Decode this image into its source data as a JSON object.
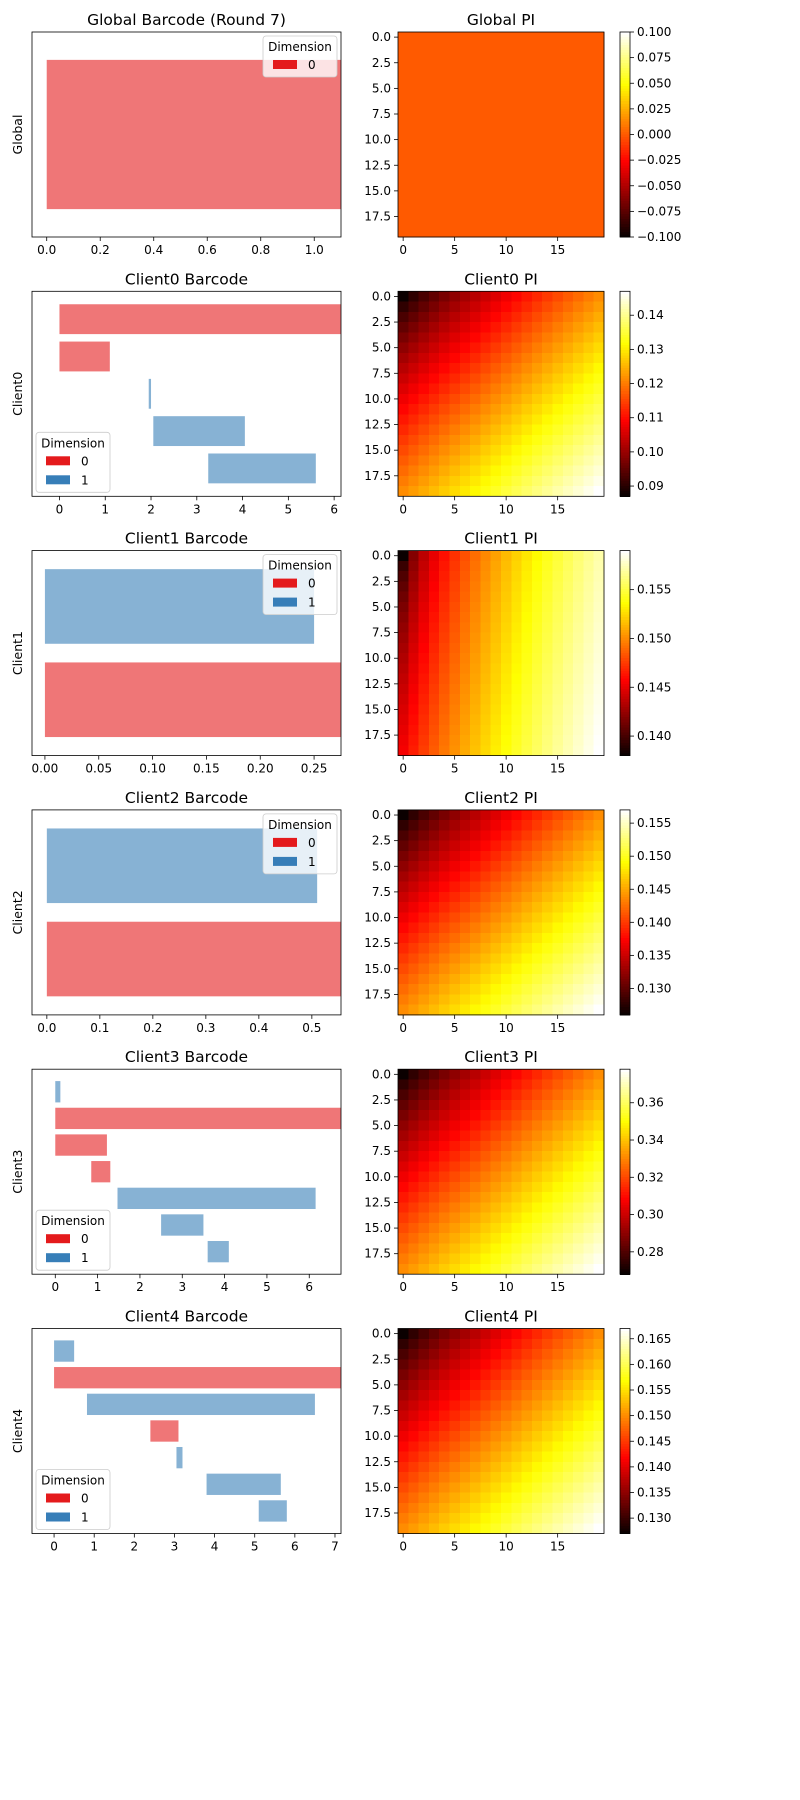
{
  "colors": {
    "dim0": "#e41a1c",
    "dim1": "#377eb8",
    "bar_alpha": 0.6
  },
  "chart_data": [
    {
      "type": "bar",
      "title": "Global Barcode (Round 7)",
      "ylabel": "Global",
      "orientation": "horizontal",
      "xlim": [
        -0.055,
        1.1
      ],
      "xticks": [
        "0.0",
        "0.2",
        "0.4",
        "0.6",
        "0.8",
        "1.0"
      ],
      "xtick_values": [
        0,
        0.2,
        0.4,
        0.6,
        0.8,
        1.0
      ],
      "legend": {
        "title": "Dimension",
        "entries": [
          "0"
        ],
        "position": "top-right"
      },
      "bars": [
        {
          "birth": 0,
          "death": 1.1,
          "dim": 0
        }
      ]
    },
    {
      "type": "heatmap",
      "title": "Global PI",
      "colormap": "hot",
      "grid_size": [
        20,
        20
      ],
      "vmin": -0.1,
      "vmax": 0.1,
      "constant_value": 0.0,
      "xticks": [
        "0",
        "5",
        "10",
        "15"
      ],
      "yticks": [
        "0.0",
        "2.5",
        "5.0",
        "7.5",
        "10.0",
        "12.5",
        "15.0",
        "17.5"
      ],
      "colorbar_ticks": [
        "0.100",
        "0.075",
        "0.050",
        "0.025",
        "0.000",
        "−0.025",
        "−0.050",
        "−0.075",
        "−0.100"
      ],
      "colorbar_tick_values": [
        0.1,
        0.075,
        0.05,
        0.025,
        0.0,
        -0.025,
        -0.05,
        -0.075,
        -0.1
      ]
    },
    {
      "type": "bar",
      "title": "Client0 Barcode",
      "ylabel": "Client0",
      "orientation": "horizontal",
      "xlim": [
        -0.6,
        6.15
      ],
      "xticks": [
        "0",
        "1",
        "2",
        "3",
        "4",
        "5",
        "6"
      ],
      "xtick_values": [
        0,
        1,
        2,
        3,
        4,
        5,
        6
      ],
      "legend": {
        "title": "Dimension",
        "entries": [
          "0",
          "1"
        ],
        "position": "lower-left"
      },
      "bars": [
        {
          "birth": 0,
          "death": 6.15,
          "dim": 0
        },
        {
          "birth": 0,
          "death": 1.1,
          "dim": 0
        },
        {
          "birth": 1.95,
          "death": 2.0,
          "dim": 1
        },
        {
          "birth": 2.05,
          "death": 4.05,
          "dim": 1
        },
        {
          "birth": 3.25,
          "death": 5.6,
          "dim": 1
        }
      ]
    },
    {
      "type": "heatmap",
      "title": "Client0 PI",
      "colormap": "hot",
      "grid_size": [
        20,
        20
      ],
      "vmin": 0.087,
      "vmax": 0.147,
      "gradient": "diagonal",
      "xticks": [
        "0",
        "5",
        "10",
        "15"
      ],
      "yticks": [
        "0.0",
        "2.5",
        "5.0",
        "7.5",
        "10.0",
        "12.5",
        "15.0",
        "17.5"
      ],
      "colorbar_ticks": [
        "0.14",
        "0.13",
        "0.12",
        "0.11",
        "0.10",
        "0.09"
      ],
      "colorbar_tick_values": [
        0.14,
        0.13,
        0.12,
        0.11,
        0.1,
        0.09
      ]
    },
    {
      "type": "bar",
      "title": "Client1 Barcode",
      "ylabel": "Client1",
      "orientation": "horizontal",
      "xlim": [
        -0.012,
        0.275
      ],
      "xticks": [
        "0.00",
        "0.05",
        "0.10",
        "0.15",
        "0.20",
        "0.25"
      ],
      "xtick_values": [
        0,
        0.05,
        0.1,
        0.15,
        0.2,
        0.25
      ],
      "legend": {
        "title": "Dimension",
        "entries": [
          "0",
          "1"
        ],
        "position": "top-right"
      },
      "bars": [
        {
          "birth": 0,
          "death": 0.25,
          "dim": 1
        },
        {
          "birth": 0,
          "death": 0.275,
          "dim": 0
        }
      ]
    },
    {
      "type": "heatmap",
      "title": "Client1 PI",
      "colormap": "hot",
      "grid_size": [
        20,
        20
      ],
      "vmin": 0.138,
      "vmax": 0.159,
      "gradient": "horizontal-dominant",
      "xticks": [
        "0",
        "5",
        "10",
        "15"
      ],
      "yticks": [
        "0.0",
        "2.5",
        "5.0",
        "7.5",
        "10.0",
        "12.5",
        "15.0",
        "17.5"
      ],
      "colorbar_ticks": [
        "0.155",
        "0.150",
        "0.145",
        "0.140"
      ],
      "colorbar_tick_values": [
        0.155,
        0.15,
        0.145,
        0.14
      ]
    },
    {
      "type": "bar",
      "title": "Client2 Barcode",
      "ylabel": "Client2",
      "orientation": "horizontal",
      "xlim": [
        -0.028,
        0.555
      ],
      "xticks": [
        "0.0",
        "0.1",
        "0.2",
        "0.3",
        "0.4",
        "0.5"
      ],
      "xtick_values": [
        0,
        0.1,
        0.2,
        0.3,
        0.4,
        0.5
      ],
      "legend": {
        "title": "Dimension",
        "entries": [
          "0",
          "1"
        ],
        "position": "top-right"
      },
      "bars": [
        {
          "birth": 0,
          "death": 0.51,
          "dim": 1
        },
        {
          "birth": 0,
          "death": 0.555,
          "dim": 0
        }
      ]
    },
    {
      "type": "heatmap",
      "title": "Client2 PI",
      "colormap": "hot",
      "grid_size": [
        20,
        20
      ],
      "vmin": 0.126,
      "vmax": 0.157,
      "gradient": "diagonal",
      "xticks": [
        "0",
        "5",
        "10",
        "15"
      ],
      "yticks": [
        "0.0",
        "2.5",
        "5.0",
        "7.5",
        "10.0",
        "12.5",
        "15.0",
        "17.5"
      ],
      "colorbar_ticks": [
        "0.155",
        "0.150",
        "0.145",
        "0.140",
        "0.135",
        "0.130"
      ],
      "colorbar_tick_values": [
        0.155,
        0.15,
        0.145,
        0.14,
        0.135,
        0.13
      ]
    },
    {
      "type": "bar",
      "title": "Client3 Barcode",
      "ylabel": "Client3",
      "orientation": "horizontal",
      "xlim": [
        -0.55,
        6.75
      ],
      "xticks": [
        "0",
        "1",
        "2",
        "3",
        "4",
        "5",
        "6"
      ],
      "xtick_values": [
        0,
        1,
        2,
        3,
        4,
        5,
        6
      ],
      "legend": {
        "title": "Dimension",
        "entries": [
          "0",
          "1"
        ],
        "position": "lower-left"
      },
      "bars": [
        {
          "birth": 0,
          "death": 0.12,
          "dim": 1
        },
        {
          "birth": 0,
          "death": 6.75,
          "dim": 0
        },
        {
          "birth": 0,
          "death": 1.22,
          "dim": 0
        },
        {
          "birth": 0.85,
          "death": 1.3,
          "dim": 0
        },
        {
          "birth": 1.47,
          "death": 6.15,
          "dim": 1
        },
        {
          "birth": 2.5,
          "death": 3.5,
          "dim": 1
        },
        {
          "birth": 3.6,
          "death": 4.1,
          "dim": 1
        }
      ]
    },
    {
      "type": "heatmap",
      "title": "Client3 PI",
      "colormap": "hot",
      "grid_size": [
        20,
        20
      ],
      "vmin": 0.268,
      "vmax": 0.378,
      "gradient": "diagonal",
      "xticks": [
        "0",
        "5",
        "10",
        "15"
      ],
      "yticks": [
        "0.0",
        "2.5",
        "5.0",
        "7.5",
        "10.0",
        "12.5",
        "15.0",
        "17.5"
      ],
      "colorbar_ticks": [
        "0.36",
        "0.34",
        "0.32",
        "0.30",
        "0.28"
      ],
      "colorbar_tick_values": [
        0.36,
        0.34,
        0.32,
        0.3,
        0.28
      ]
    },
    {
      "type": "bar",
      "title": "Client4 Barcode",
      "ylabel": "Client4",
      "orientation": "horizontal",
      "xlim": [
        -0.55,
        7.15
      ],
      "xticks": [
        "0",
        "1",
        "2",
        "3",
        "4",
        "5",
        "6",
        "7"
      ],
      "xtick_values": [
        0,
        1,
        2,
        3,
        4,
        5,
        6,
        7
      ],
      "legend": {
        "title": "Dimension",
        "entries": [
          "0",
          "1"
        ],
        "position": "lower-left"
      },
      "bars": [
        {
          "birth": 0,
          "death": 0.5,
          "dim": 1
        },
        {
          "birth": 0,
          "death": 7.15,
          "dim": 0
        },
        {
          "birth": 0.82,
          "death": 6.5,
          "dim": 1
        },
        {
          "birth": 2.4,
          "death": 3.1,
          "dim": 0
        },
        {
          "birth": 3.05,
          "death": 3.2,
          "dim": 1
        },
        {
          "birth": 3.8,
          "death": 5.65,
          "dim": 1
        },
        {
          "birth": 5.1,
          "death": 5.8,
          "dim": 1
        }
      ]
    },
    {
      "type": "heatmap",
      "title": "Client4 PI",
      "colormap": "hot",
      "grid_size": [
        20,
        20
      ],
      "vmin": 0.127,
      "vmax": 0.167,
      "gradient": "diagonal",
      "xticks": [
        "0",
        "5",
        "10",
        "15"
      ],
      "yticks": [
        "0.0",
        "2.5",
        "5.0",
        "7.5",
        "10.0",
        "12.5",
        "15.0",
        "17.5"
      ],
      "colorbar_ticks": [
        "0.165",
        "0.160",
        "0.155",
        "0.150",
        "0.145",
        "0.140",
        "0.135",
        "0.130"
      ],
      "colorbar_tick_values": [
        0.165,
        0.16,
        0.155,
        0.15,
        0.145,
        0.14,
        0.135,
        0.13
      ]
    }
  ]
}
